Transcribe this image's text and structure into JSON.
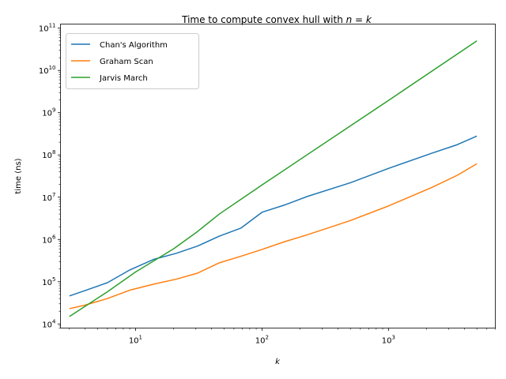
{
  "chart_data": {
    "type": "line",
    "title": "Time to compute convex hull with n = k",
    "title_parts": {
      "prefix": "Time to compute convex hull with ",
      "var_n": "n",
      "eq": " = ",
      "var_k": "k"
    },
    "xlabel": "k",
    "ylabel": "time (ns)",
    "x_scale": "log",
    "y_scale": "log",
    "xlim": [
      2.55,
      7000
    ],
    "ylim": [
      8000,
      125000000000
    ],
    "x_ticks": [
      {
        "value": 10,
        "base": "10",
        "exp": "1"
      },
      {
        "value": 100,
        "base": "10",
        "exp": "2"
      },
      {
        "value": 1000,
        "base": "10",
        "exp": "3"
      }
    ],
    "y_ticks": [
      {
        "value": 10000,
        "base": "10",
        "exp": "4"
      },
      {
        "value": 100000,
        "base": "10",
        "exp": "5"
      },
      {
        "value": 1000000,
        "base": "10",
        "exp": "6"
      },
      {
        "value": 10000000,
        "base": "10",
        "exp": "7"
      },
      {
        "value": 100000000,
        "base": "10",
        "exp": "8"
      },
      {
        "value": 1000000000,
        "base": "10",
        "exp": "9"
      },
      {
        "value": 10000000000,
        "base": "10",
        "exp": "10"
      },
      {
        "value": 100000000000,
        "base": "10",
        "exp": "11"
      }
    ],
    "grid": false,
    "legend_position": "top-left",
    "series": [
      {
        "name": "Chan's Algorithm",
        "color": "#1f77b4",
        "points": [
          [
            3,
            46000
          ],
          [
            4,
            62000
          ],
          [
            6,
            95000
          ],
          [
            9,
            190000
          ],
          [
            14,
            340000
          ],
          [
            21,
            470000
          ],
          [
            31,
            700000
          ],
          [
            46,
            1200000
          ],
          [
            68,
            1850000
          ],
          [
            100,
            4400000
          ],
          [
            150,
            6500000
          ],
          [
            230,
            10500000
          ],
          [
            500,
            22000000
          ],
          [
            1000,
            48000000
          ],
          [
            2200,
            110000000
          ],
          [
            3500,
            175000000
          ],
          [
            5000,
            280000000
          ]
        ]
      },
      {
        "name": "Graham Scan",
        "color": "#ff7f0e",
        "points": [
          [
            3,
            23000
          ],
          [
            4,
            28000
          ],
          [
            6,
            40000
          ],
          [
            9,
            63000
          ],
          [
            14,
            88000
          ],
          [
            21,
            115000
          ],
          [
            31,
            160000
          ],
          [
            46,
            280000
          ],
          [
            68,
            400000
          ],
          [
            100,
            580000
          ],
          [
            150,
            880000
          ],
          [
            230,
            1300000
          ],
          [
            500,
            2800000
          ],
          [
            1000,
            6200000
          ],
          [
            2200,
            17000000
          ],
          [
            3500,
            33000000
          ],
          [
            5000,
            62000000
          ]
        ]
      },
      {
        "name": "Jarvis March",
        "color": "#2ca02c",
        "points": [
          [
            3,
            15000
          ],
          [
            6,
            58000
          ],
          [
            10,
            170000
          ],
          [
            20,
            600000
          ],
          [
            31,
            1550000
          ],
          [
            46,
            4000000
          ],
          [
            100,
            19500000
          ],
          [
            1000,
            1950000000
          ],
          [
            5000,
            50000000000
          ]
        ]
      }
    ]
  }
}
